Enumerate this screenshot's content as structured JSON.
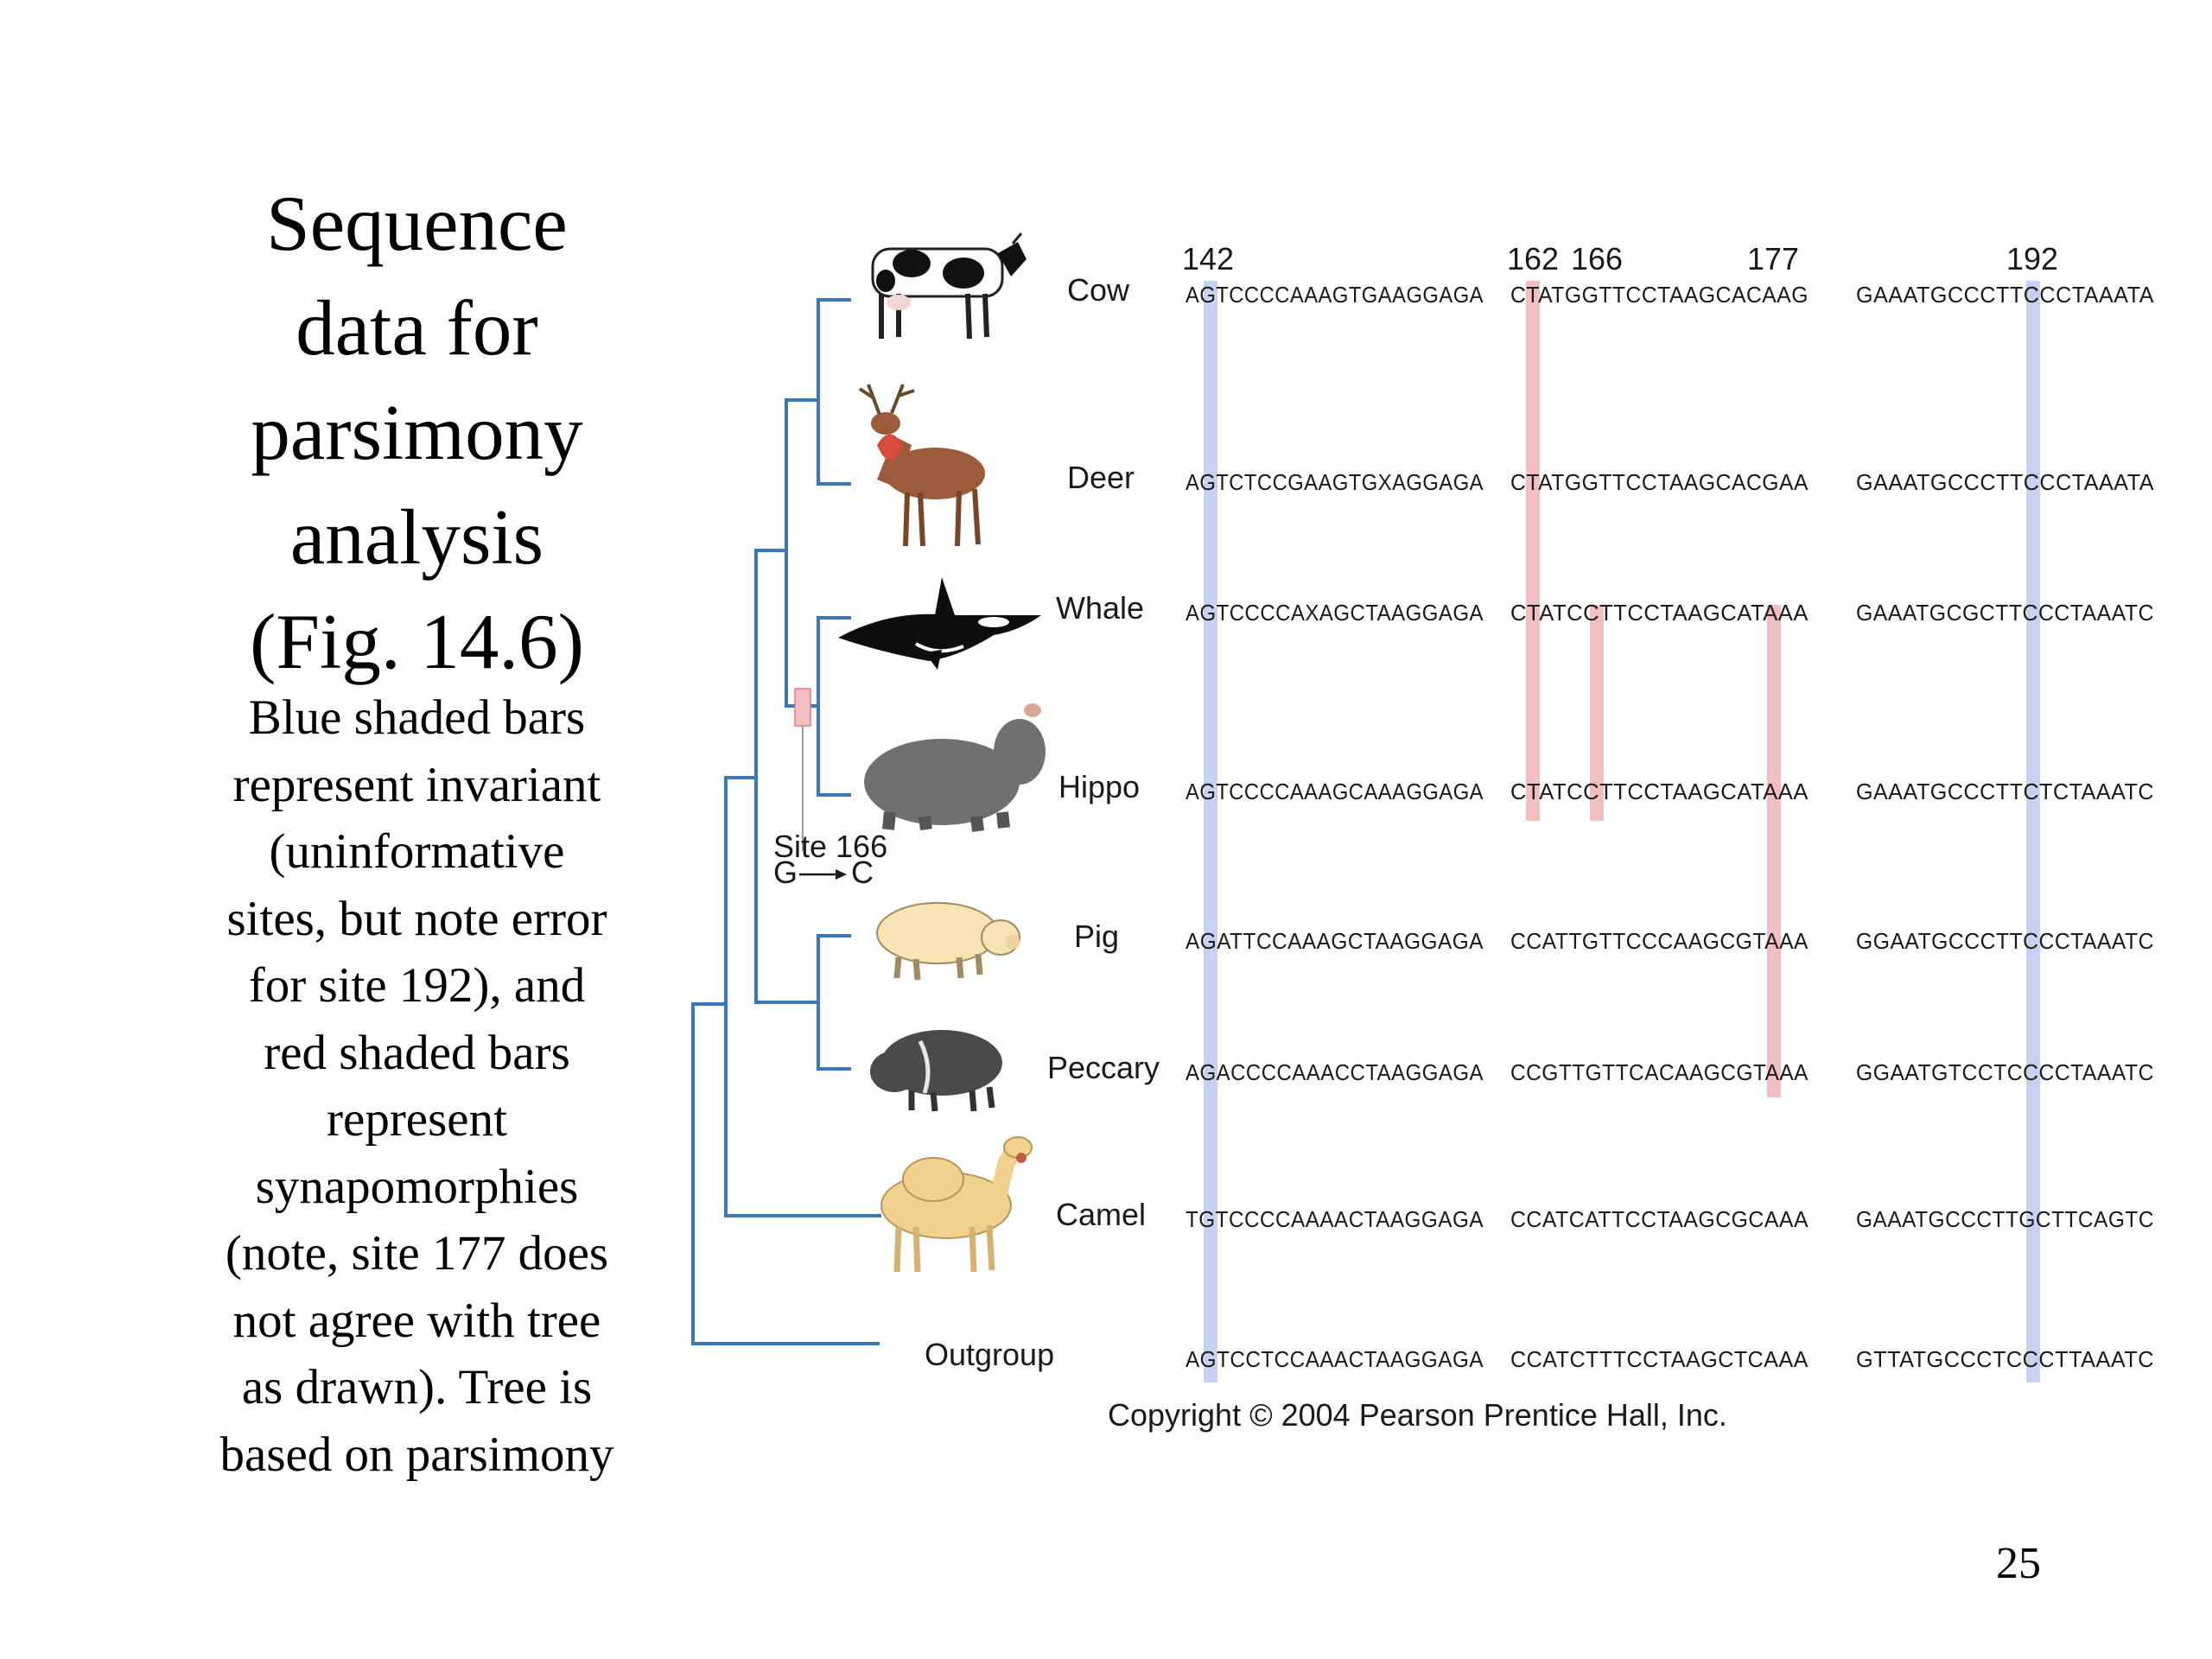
{
  "slide": {
    "title_lines": [
      "Sequence",
      "data for",
      "parsimony",
      "analysis",
      "(Fig. 14.6)"
    ],
    "caption_lines": [
      "Blue shaded bars",
      "represent invariant",
      "(uninformative",
      "sites, but note error",
      "for site 192), and",
      "red shaded bars",
      "represent",
      "synapomorphies",
      "(note, site 177 does",
      "not agree with tree",
      "as drawn).  Tree is",
      "based on parsimony"
    ],
    "page_number": "25"
  },
  "figure": {
    "site_numbers": [
      "142",
      "162",
      "166",
      "177",
      "192"
    ],
    "taxa": [
      {
        "name": "Cow",
        "icon": "cow-icon",
        "segments": [
          "AGTCCCCAAAGTGAAGGAGA",
          "CTATGGTTCCTAAGCACAAG",
          "GAAATGCCCTTCCCTAAATA"
        ]
      },
      {
        "name": "Deer",
        "icon": "deer-icon",
        "segments": [
          "AGTCTCCGAAGTGXAGGAGA",
          "CTATGGTTCCTAAGCACGAA",
          "GAAATGCCCTTCCCTAAATA"
        ]
      },
      {
        "name": "Whale",
        "icon": "whale-icon",
        "segments": [
          "AGTCCCCAXAGCTAAGGAGA",
          "CTATCCTTCCTAAGCATAAA",
          "GAAATGCGCTTCCCTAAATC"
        ]
      },
      {
        "name": "Hippo",
        "icon": "hippo-icon",
        "segments": [
          "AGTCCCCAAAGCAAAGGAGA",
          "CTATCCTTCCTAAGCATAAA",
          "GAAATGCCCTTCTCTAAATC"
        ]
      },
      {
        "name": "Pig",
        "icon": "pig-icon",
        "segments": [
          "AGATTCCAAAGCTAAGGAGA",
          "CCATTGTTCCCAAGCGTAAA",
          "GGAATGCCCTTCCCTAAATC"
        ]
      },
      {
        "name": "Peccary",
        "icon": "peccary-icon",
        "segments": [
          "AGACCCCAAACCTAAGGAGA",
          "CCGTTGTTCACAAGCGTAAA",
          "GGAATGTCCTCCCCTAAATC"
        ]
      },
      {
        "name": "Camel",
        "icon": "camel-icon",
        "segments": [
          "TGTCCCCAAAACTAAGGAGA",
          "CCATCATTCCTAAGCGCAAA",
          "GAAATGCCCTTGCTTCAGTC"
        ]
      },
      {
        "name": "Outgroup",
        "icon": "",
        "segments": [
          "AGTCCTCCAAACTAAGGAGA",
          "CCATCTTTCCTAAGCTCAAA",
          "GTTATGCCCTCCCTTAAATC"
        ]
      }
    ],
    "site_change": {
      "label": "Site 166",
      "from": "G",
      "to": "C"
    },
    "copyright": "Copyright © 2004 Pearson Prentice Hall, Inc.",
    "colors": {
      "invariant_bar": "#c7d2f0",
      "synapomorphy_bar": "#f2bfc1",
      "tree": "#3a78b8"
    }
  }
}
